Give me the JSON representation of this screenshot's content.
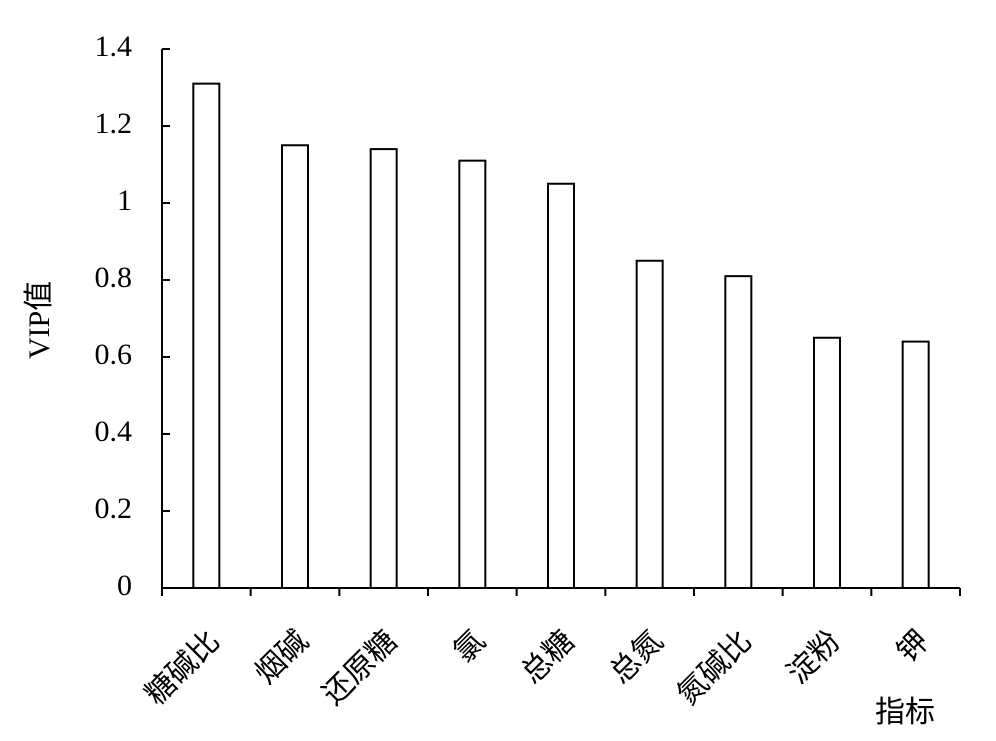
{
  "chart_data": {
    "type": "bar",
    "x_label": "指标",
    "y_label": "VIP值",
    "categories": [
      "糖碱比",
      "烟碱",
      "还原糖",
      "氯",
      "总糖",
      "总氮",
      "氮碱比",
      "淀粉",
      "钾"
    ],
    "values": [
      1.31,
      1.15,
      1.14,
      1.11,
      1.05,
      0.85,
      0.81,
      0.65,
      0.64
    ],
    "color": "#ffffff",
    "ylim": [
      0,
      1.4
    ],
    "yticks": [
      0,
      0.2,
      0.4,
      0.6,
      0.8,
      1,
      1.2,
      1.4
    ],
    "grid": false
  }
}
